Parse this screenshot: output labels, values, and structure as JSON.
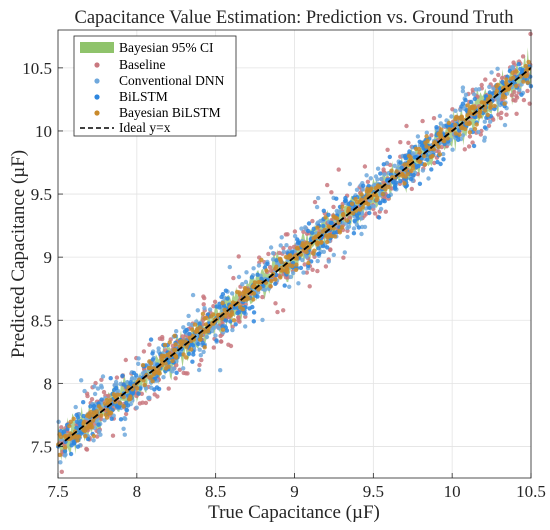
{
  "chart_data": {
    "type": "scatter",
    "title": "Capacitance Value Estimation: Prediction vs. Ground Truth",
    "xlabel": "True Capacitance (µF)",
    "ylabel": "Predicted Capacitance (µF)",
    "xlim": [
      7.5,
      10.5
    ],
    "ylim": [
      7.25,
      10.8
    ],
    "xticks": [
      "7.5",
      "8",
      "8.5",
      "9",
      "9.5",
      "10",
      "10.5"
    ],
    "yticks": [
      "7.5",
      "8",
      "8.5",
      "9",
      "9.5",
      "10",
      "10.5"
    ],
    "grid": true,
    "legend_position": "top-left",
    "n_points_per_series": 500,
    "series": [
      {
        "name": "Bayesian 95% CI",
        "kind": "band",
        "color": "#8fc36b",
        "halfwidth": 0.08
      },
      {
        "name": "Baseline",
        "kind": "scatter",
        "color": "#c9787f",
        "noise_sd": 0.13
      },
      {
        "name": "Conventional DNN",
        "kind": "scatter",
        "color": "#6fa8dc",
        "noise_sd": 0.11
      },
      {
        "name": "BiLSTM",
        "kind": "scatter",
        "color": "#2e86de",
        "noise_sd": 0.08
      },
      {
        "name": "Bayesian BiLSTM",
        "kind": "scatter",
        "color": "#c98a2b",
        "noise_sd": 0.05
      },
      {
        "name": "Ideal y=x",
        "kind": "line",
        "color": "#000000",
        "x": [
          7.5,
          10.5
        ],
        "y": [
          7.5,
          10.5
        ]
      }
    ]
  }
}
